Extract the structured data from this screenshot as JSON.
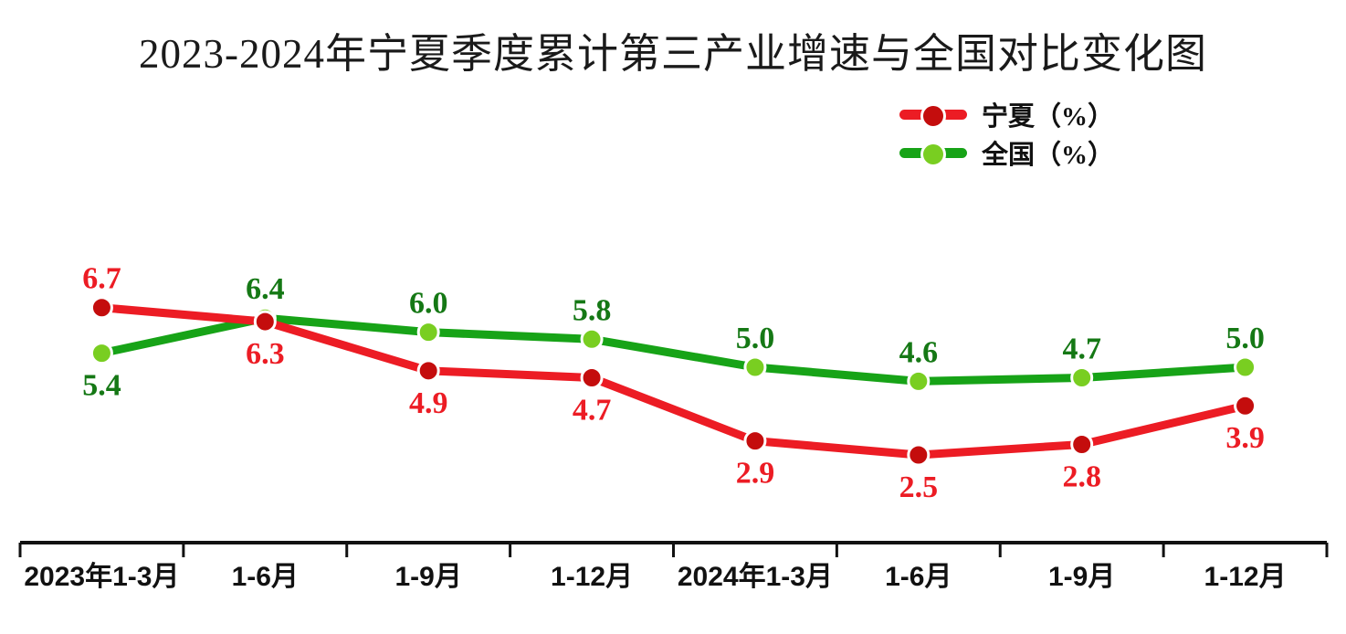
{
  "title": "2023-2024年宁夏季度累计第三产业增速与全国对比变化图",
  "chart_data": {
    "type": "line",
    "categories": [
      "2023年1-3月",
      "1-6月",
      "1-9月",
      "1-12月",
      "2024年1-3月",
      "1-6月",
      "1-9月",
      "1-12月"
    ],
    "series": [
      {
        "name": "宁夏（%）",
        "values": [
          6.7,
          6.3,
          4.9,
          4.7,
          2.9,
          2.5,
          2.8,
          3.9
        ],
        "line_color": "#ec1c24",
        "marker_color": "#c40d0d",
        "label_color": "#ec1c24",
        "label_side": [
          "above",
          "below",
          "below",
          "below",
          "below",
          "below",
          "below",
          "below"
        ]
      },
      {
        "name": "全国（%）",
        "values": [
          5.4,
          6.4,
          6.0,
          5.8,
          5.0,
          4.6,
          4.7,
          5.0
        ],
        "line_color": "#17a317",
        "marker_color": "#79ce21",
        "label_color": "#157815",
        "label_side": [
          "below",
          "above",
          "above",
          "above",
          "above",
          "above",
          "above",
          "above"
        ]
      }
    ],
    "ylim": [
      0,
      7.5
    ],
    "xlabel": "",
    "ylabel": "",
    "y_axis_visible": false,
    "grid": false,
    "legend_position": "top-right",
    "axis_color": "#111111",
    "background_color": "#ffffff",
    "value_decimals": 1
  }
}
